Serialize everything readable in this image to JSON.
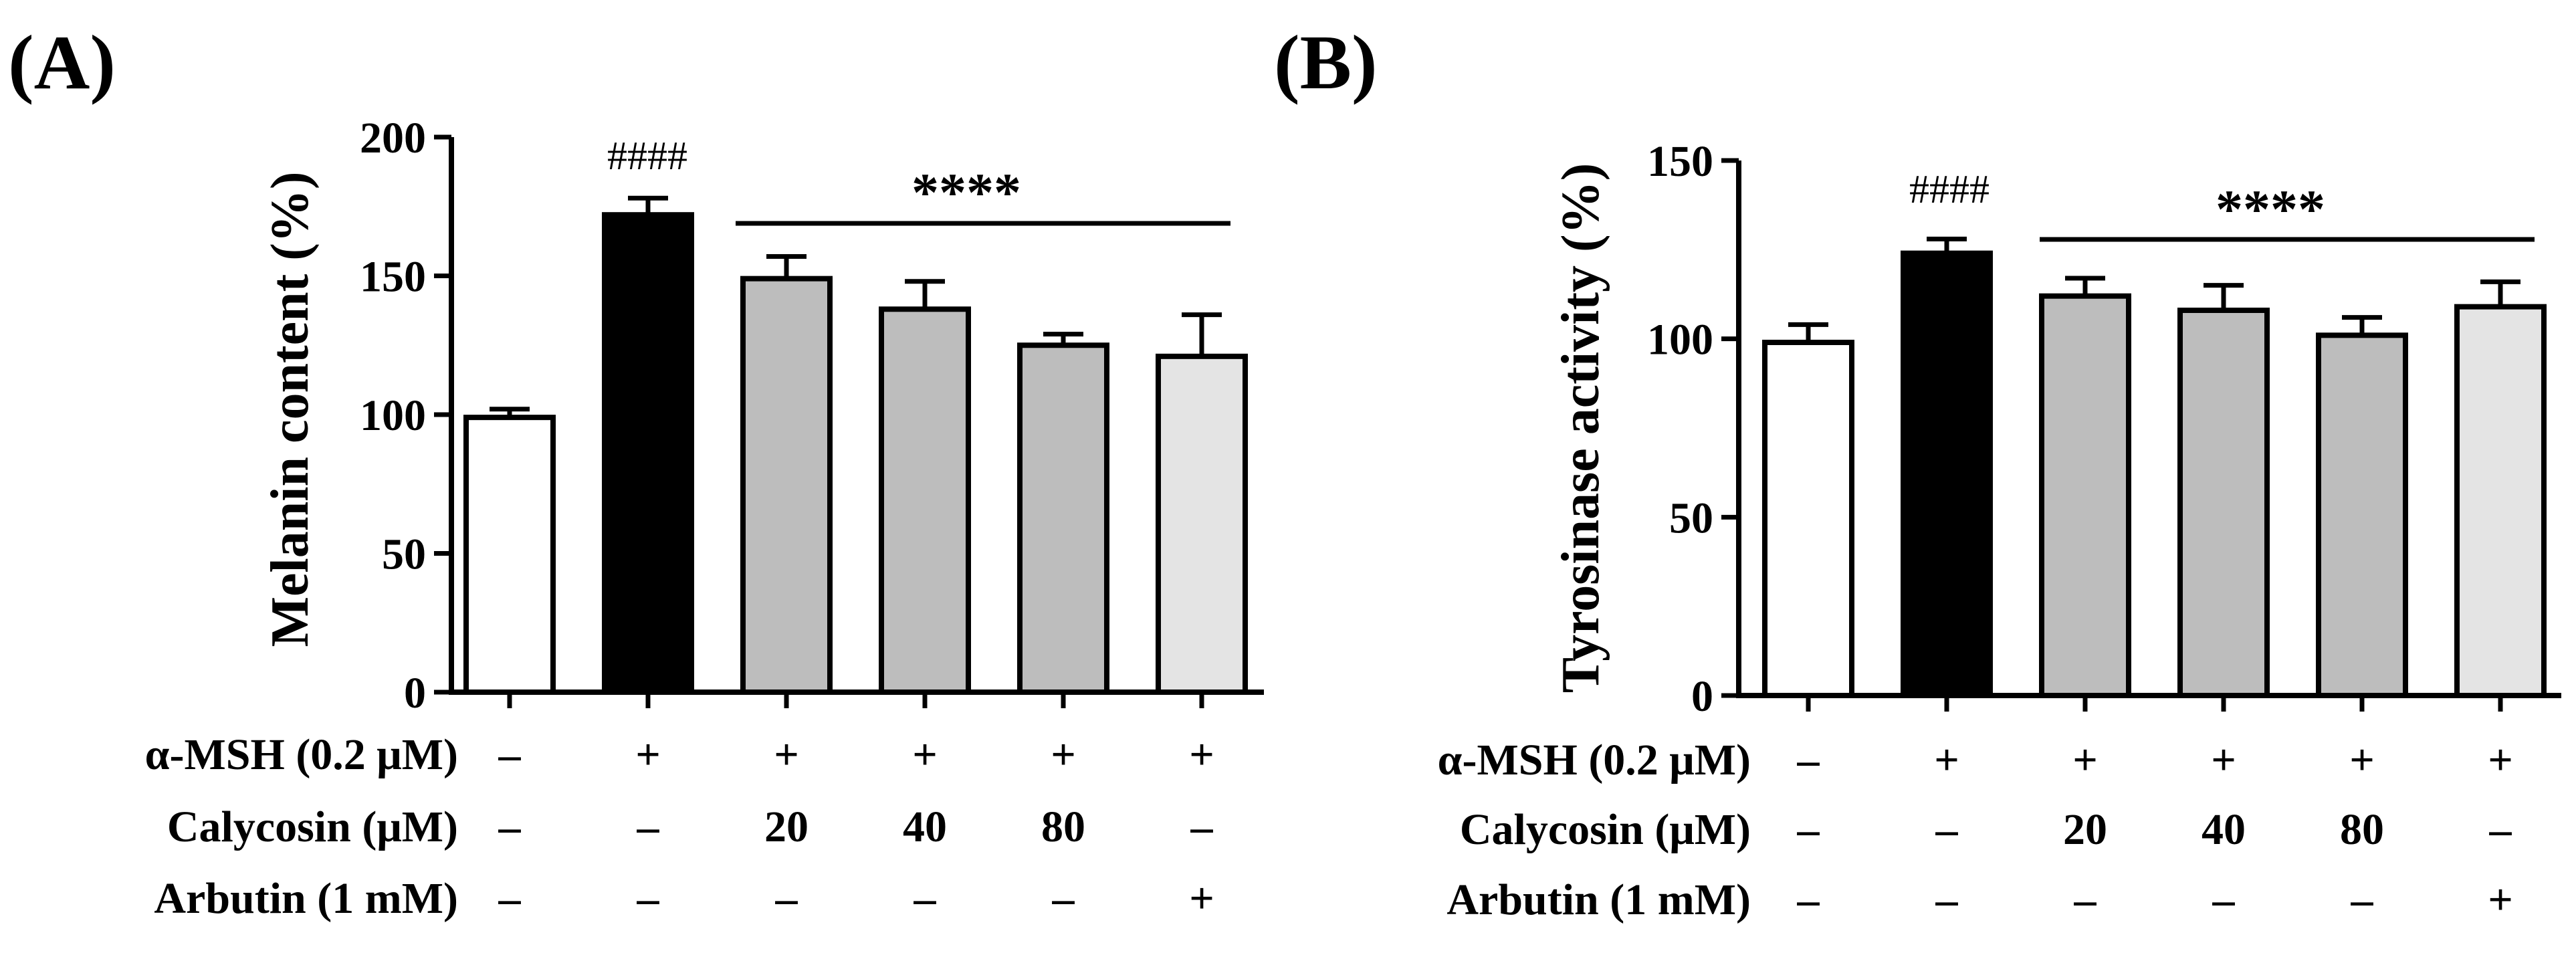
{
  "chart_data": [
    {
      "panel": "(A)",
      "type": "bar",
      "ylabel": "Melanin content (%)",
      "ylim": [
        0,
        200
      ],
      "yticks": [
        "0",
        "50",
        "100",
        "150",
        "200"
      ],
      "values": [
        99,
        172,
        149,
        138,
        125,
        121
      ],
      "errors": [
        3,
        6,
        8,
        10,
        4,
        15
      ],
      "bar_colors": [
        "#ffffff",
        "#000000",
        "#bdbdbd",
        "#bdbdbd",
        "#bdbdbd",
        "#e4e4e4"
      ],
      "annotations": {
        "hash": "####",
        "stars": "****"
      },
      "condition_rows": [
        {
          "label": "α-MSH (0.2 μM)",
          "values": [
            "–",
            "+",
            "+",
            "+",
            "+",
            "+"
          ]
        },
        {
          "label": "Calycosin (μM)",
          "values": [
            "–",
            "–",
            "20",
            "40",
            "80",
            "–"
          ]
        },
        {
          "label": "Arbutin (1 mM)",
          "values": [
            "–",
            "–",
            "–",
            "–",
            "–",
            "+"
          ]
        }
      ]
    },
    {
      "panel": "(B)",
      "type": "bar",
      "ylabel": "Tyrosinase activity (%)",
      "ylim": [
        0,
        150
      ],
      "yticks": [
        "0",
        "50",
        "100",
        "150"
      ],
      "values": [
        99,
        124,
        112,
        108,
        101,
        109
      ],
      "errors": [
        5,
        4,
        5,
        7,
        5,
        7
      ],
      "bar_colors": [
        "#ffffff",
        "#000000",
        "#bdbdbd",
        "#bdbdbd",
        "#bdbdbd",
        "#e4e4e4"
      ],
      "annotations": {
        "hash": "####",
        "stars": "****"
      },
      "condition_rows": [
        {
          "label": "α-MSH (0.2 μM)",
          "values": [
            "–",
            "+",
            "+",
            "+",
            "+",
            "+"
          ]
        },
        {
          "label": "Calycosin (μM)",
          "values": [
            "–",
            "–",
            "20",
            "40",
            "80",
            "–"
          ]
        },
        {
          "label": "Arbutin (1 mM)",
          "values": [
            "–",
            "–",
            "–",
            "–",
            "–",
            "+"
          ]
        }
      ]
    }
  ]
}
